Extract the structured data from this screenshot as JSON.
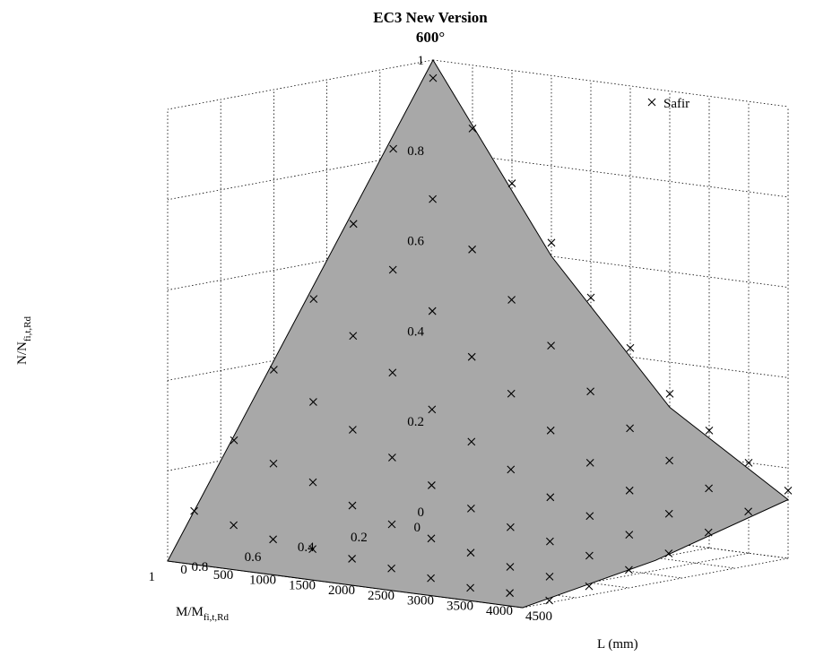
{
  "chart_data": {
    "type": "surface",
    "title": "EC3 New Version",
    "subtitle": "600°",
    "zlabel_main": "N/N",
    "zlabel_sub": "fi,t,Rd",
    "xlabel_main": "M/M",
    "xlabel_sub": "fi,t,Rd",
    "ylabel": "L (mm)",
    "xlim": [
      0,
      1
    ],
    "ylim": [
      0,
      4500
    ],
    "zlim": [
      0,
      1
    ],
    "x_ticks": [
      "0",
      "0.2",
      "0.4",
      "0.6",
      "0.8",
      "1"
    ],
    "x_tick_values": [
      0,
      0.2,
      0.4,
      0.6,
      0.8,
      1
    ],
    "y_ticks": [
      "0",
      "500",
      "1000",
      "1500",
      "2000",
      "2500",
      "3000",
      "3500",
      "4000",
      "4500"
    ],
    "y_tick_values": [
      0,
      500,
      1000,
      1500,
      2000,
      2500,
      3000,
      3500,
      4000,
      4500
    ],
    "z_ticks": [
      "0",
      "0.2",
      "0.4",
      "0.6",
      "0.8",
      "1"
    ],
    "z_tick_values": [
      0,
      0.2,
      0.4,
      0.6,
      0.8,
      1
    ],
    "grid": true,
    "surface_color": "#a8a8a8",
    "legend": {
      "marker": "x",
      "label": "Safir",
      "position": "top-right"
    },
    "surface_edges": [
      {
        "name": "M=0 edge",
        "points": [
          [
            0,
            0,
            1
          ],
          [
            0,
            1500,
            0.6
          ],
          [
            0,
            3000,
            0.3
          ],
          [
            0,
            4500,
            0.13
          ]
        ]
      },
      {
        "name": "L=0 edge",
        "points": [
          [
            0,
            0,
            1
          ],
          [
            0.5,
            0,
            0.5
          ],
          [
            1,
            0,
            0
          ]
        ]
      },
      {
        "name": "N=0 edge",
        "points": [
          [
            1,
            0,
            0
          ],
          [
            1,
            1500,
            0
          ],
          [
            1,
            3000,
            0
          ],
          [
            1,
            4500,
            0
          ]
        ]
      },
      {
        "name": "L=4500 edge",
        "points": [
          [
            0,
            4500,
            0.13
          ],
          [
            0.5,
            4500,
            0.05
          ],
          [
            1,
            4500,
            0
          ]
        ]
      }
    ],
    "series": [
      {
        "name": "Safir",
        "points": [
          [
            0,
            0,
            0.96
          ],
          [
            0,
            500,
            0.86
          ],
          [
            0,
            1000,
            0.75
          ],
          [
            0,
            1500,
            0.63
          ],
          [
            0,
            2000,
            0.52
          ],
          [
            0,
            2500,
            0.42
          ],
          [
            0,
            3000,
            0.33
          ],
          [
            0,
            3500,
            0.26
          ],
          [
            0,
            4000,
            0.2
          ],
          [
            0,
            4500,
            0.15
          ],
          [
            0.15,
            0,
            0.82
          ],
          [
            0.15,
            500,
            0.72
          ],
          [
            0.15,
            1000,
            0.62
          ],
          [
            0.15,
            1500,
            0.52
          ],
          [
            0.15,
            2000,
            0.43
          ],
          [
            0.15,
            2500,
            0.34
          ],
          [
            0.15,
            3000,
            0.27
          ],
          [
            0.15,
            3500,
            0.21
          ],
          [
            0.15,
            4000,
            0.16
          ],
          [
            0.15,
            4500,
            0.12
          ],
          [
            0.3,
            0,
            0.67
          ],
          [
            0.3,
            500,
            0.58
          ],
          [
            0.3,
            1000,
            0.5
          ],
          [
            0.3,
            1500,
            0.41
          ],
          [
            0.3,
            2000,
            0.34
          ],
          [
            0.3,
            2500,
            0.27
          ],
          [
            0.3,
            3000,
            0.21
          ],
          [
            0.3,
            3500,
            0.16
          ],
          [
            0.3,
            4000,
            0.12
          ],
          [
            0.3,
            4500,
            0.09
          ],
          [
            0.45,
            0,
            0.52
          ],
          [
            0.45,
            500,
            0.45
          ],
          [
            0.45,
            1000,
            0.38
          ],
          [
            0.45,
            1500,
            0.31
          ],
          [
            0.45,
            2000,
            0.25
          ],
          [
            0.45,
            2500,
            0.2
          ],
          [
            0.45,
            3000,
            0.15
          ],
          [
            0.45,
            3500,
            0.12
          ],
          [
            0.45,
            4000,
            0.09
          ],
          [
            0.45,
            4500,
            0.06
          ],
          [
            0.6,
            0,
            0.38
          ],
          [
            0.6,
            500,
            0.32
          ],
          [
            0.6,
            1000,
            0.27
          ],
          [
            0.6,
            1500,
            0.22
          ],
          [
            0.6,
            2000,
            0.17
          ],
          [
            0.6,
            2500,
            0.13
          ],
          [
            0.6,
            3000,
            0.1
          ],
          [
            0.6,
            3500,
            0.08
          ],
          [
            0.6,
            4000,
            0.06
          ],
          [
            0.6,
            4500,
            0.04
          ],
          [
            0.75,
            0,
            0.24
          ],
          [
            0.75,
            500,
            0.2
          ],
          [
            0.75,
            1000,
            0.17
          ],
          [
            0.75,
            1500,
            0.13
          ],
          [
            0.75,
            2000,
            0.1
          ],
          [
            0.75,
            2500,
            0.08
          ],
          [
            0.75,
            3000,
            0.06
          ],
          [
            0.75,
            3500,
            0.04
          ],
          [
            0.75,
            4000,
            0.03
          ],
          [
            0.75,
            4500,
            0.02
          ],
          [
            0.9,
            0,
            0.1
          ],
          [
            0.9,
            500,
            0.08
          ],
          [
            0.9,
            1000,
            0.06
          ],
          [
            0.9,
            1500,
            0.05
          ],
          [
            0.9,
            2000,
            0.04
          ],
          [
            0.9,
            2500,
            0.03
          ],
          [
            0.9,
            3000,
            0.02
          ],
          [
            0.9,
            3500,
            0.01
          ],
          [
            0.9,
            4000,
            0.01
          ],
          [
            0.9,
            4500,
            0.005
          ]
        ]
      }
    ]
  }
}
